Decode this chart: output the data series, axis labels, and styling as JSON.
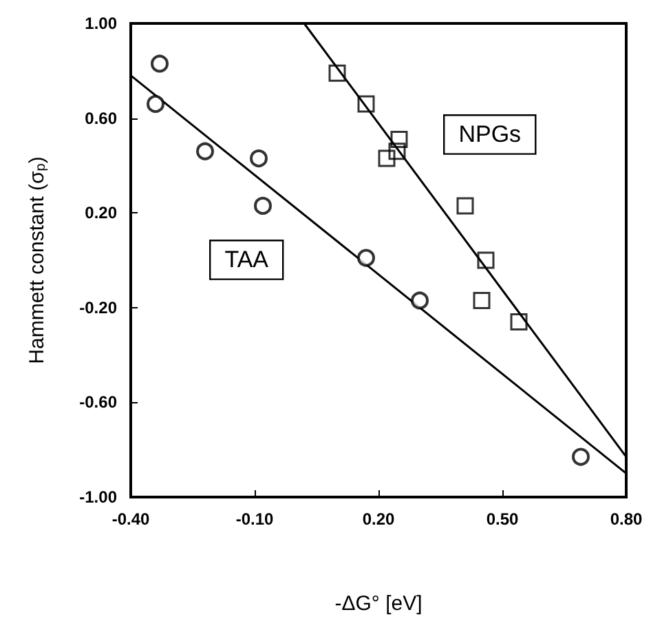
{
  "chart_data": {
    "type": "scatter",
    "xlabel": "-ΔG° [eV]",
    "ylabel": "Hammett constant (σ$_{p}$)",
    "xlim": [
      -0.4,
      0.8
    ],
    "xticks": [
      {
        "value": -0.4,
        "label": "-0.40"
      },
      {
        "value": -0.1,
        "label": "-0.10"
      },
      {
        "value": 0.2,
        "label": "0.20"
      },
      {
        "value": 0.5,
        "label": "0.50"
      },
      {
        "value": 0.8,
        "label": "0.80"
      }
    ],
    "ylim": [
      -1.0,
      1.0
    ],
    "yticks": [
      {
        "value": -1.0,
        "label": "-1.00"
      },
      {
        "value": -0.6,
        "label": "-0.60"
      },
      {
        "value": -0.2,
        "label": "-0.20"
      },
      {
        "value": 0.2,
        "label": "0.20"
      },
      {
        "value": 0.6,
        "label": "0.60"
      },
      {
        "value": 1.0,
        "label": "1.00"
      }
    ],
    "grid": false,
    "legend": false,
    "series": [
      {
        "name": "TAA",
        "marker": "circle",
        "color": "#000000",
        "x": [
          -0.33,
          -0.34,
          -0.22,
          -0.09,
          -0.08,
          0.17,
          0.3,
          0.69
        ],
        "values": [
          0.83,
          0.66,
          0.46,
          0.43,
          0.23,
          0.01,
          -0.17,
          -0.83
        ]
      },
      {
        "name": "NPGs",
        "marker": "square",
        "color": "#000000",
        "x": [
          0.1,
          0.17,
          0.25,
          0.245,
          0.22,
          0.41,
          0.46,
          0.45,
          0.54
        ],
        "values": [
          0.79,
          0.66,
          0.51,
          0.46,
          0.43,
          0.23,
          0.0,
          -0.17,
          -0.26
        ]
      },
      {
        "type": "line",
        "marker": "none",
        "line_style": "solid",
        "color": "#000000",
        "x": [
          -0.4,
          0.8
        ],
        "values": [
          0.78,
          -0.9
        ]
      },
      {
        "type": "line",
        "marker": "none",
        "line_style": "solid",
        "color": "#000000",
        "x": [
          0.02,
          0.8
        ],
        "values": [
          1.0,
          -0.83
        ]
      }
    ]
  }
}
